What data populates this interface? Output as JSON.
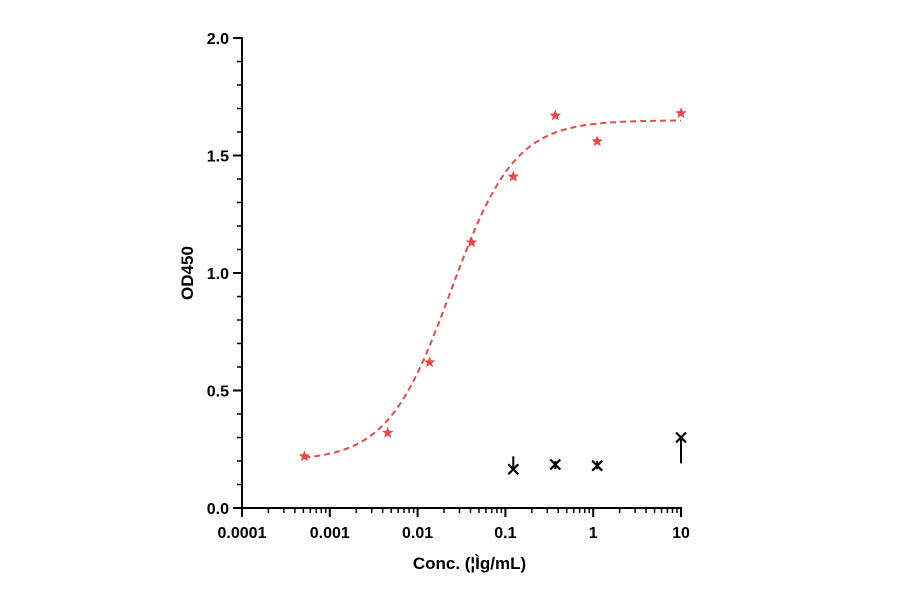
{
  "chart_data": {
    "type": "scatter",
    "xlabel": "Conc. (¦Ìg/mL)",
    "ylabel": "OD450",
    "x_scale": "log",
    "xlim": [
      0.0001,
      10
    ],
    "ylim": [
      0.0,
      2.0
    ],
    "x_tick_values": [
      0.0001,
      0.001,
      0.01,
      0.1,
      1,
      10
    ],
    "x_tick_labels": [
      "0.0001",
      "0.001",
      "0.01",
      "0.1",
      "1",
      "10"
    ],
    "y_tick_values": [
      0.0,
      0.5,
      1.0,
      1.5,
      2.0
    ],
    "y_tick_labels": [
      "0.0",
      "0.5",
      "1.0",
      "1.5",
      "2.0"
    ],
    "grid": false,
    "series": [
      {
        "marker": "star",
        "color": "#e84a4a",
        "x": [
          0.000514,
          0.00457,
          0.0137,
          0.0412,
          0.123,
          0.37,
          1.11,
          10
        ],
        "y": [
          0.22,
          0.32,
          0.62,
          1.13,
          1.41,
          1.67,
          1.56,
          1.68
        ],
        "fit": {
          "model": "4PL",
          "color": "#e84a4a",
          "line_style": "dashed",
          "bottom": 0.2,
          "top": 1.65,
          "ec50": 0.024,
          "hill": 1.2
        }
      },
      {
        "marker": "x",
        "color": "#000000",
        "x": [
          0.123,
          0.37,
          1.11,
          10
        ],
        "y": [
          0.165,
          0.185,
          0.18,
          0.3
        ],
        "error_upper": [
          0.22,
          0.2,
          0.2,
          0.3
        ],
        "error_lower": [
          0.165,
          0.165,
          0.165,
          0.19
        ]
      }
    ]
  }
}
